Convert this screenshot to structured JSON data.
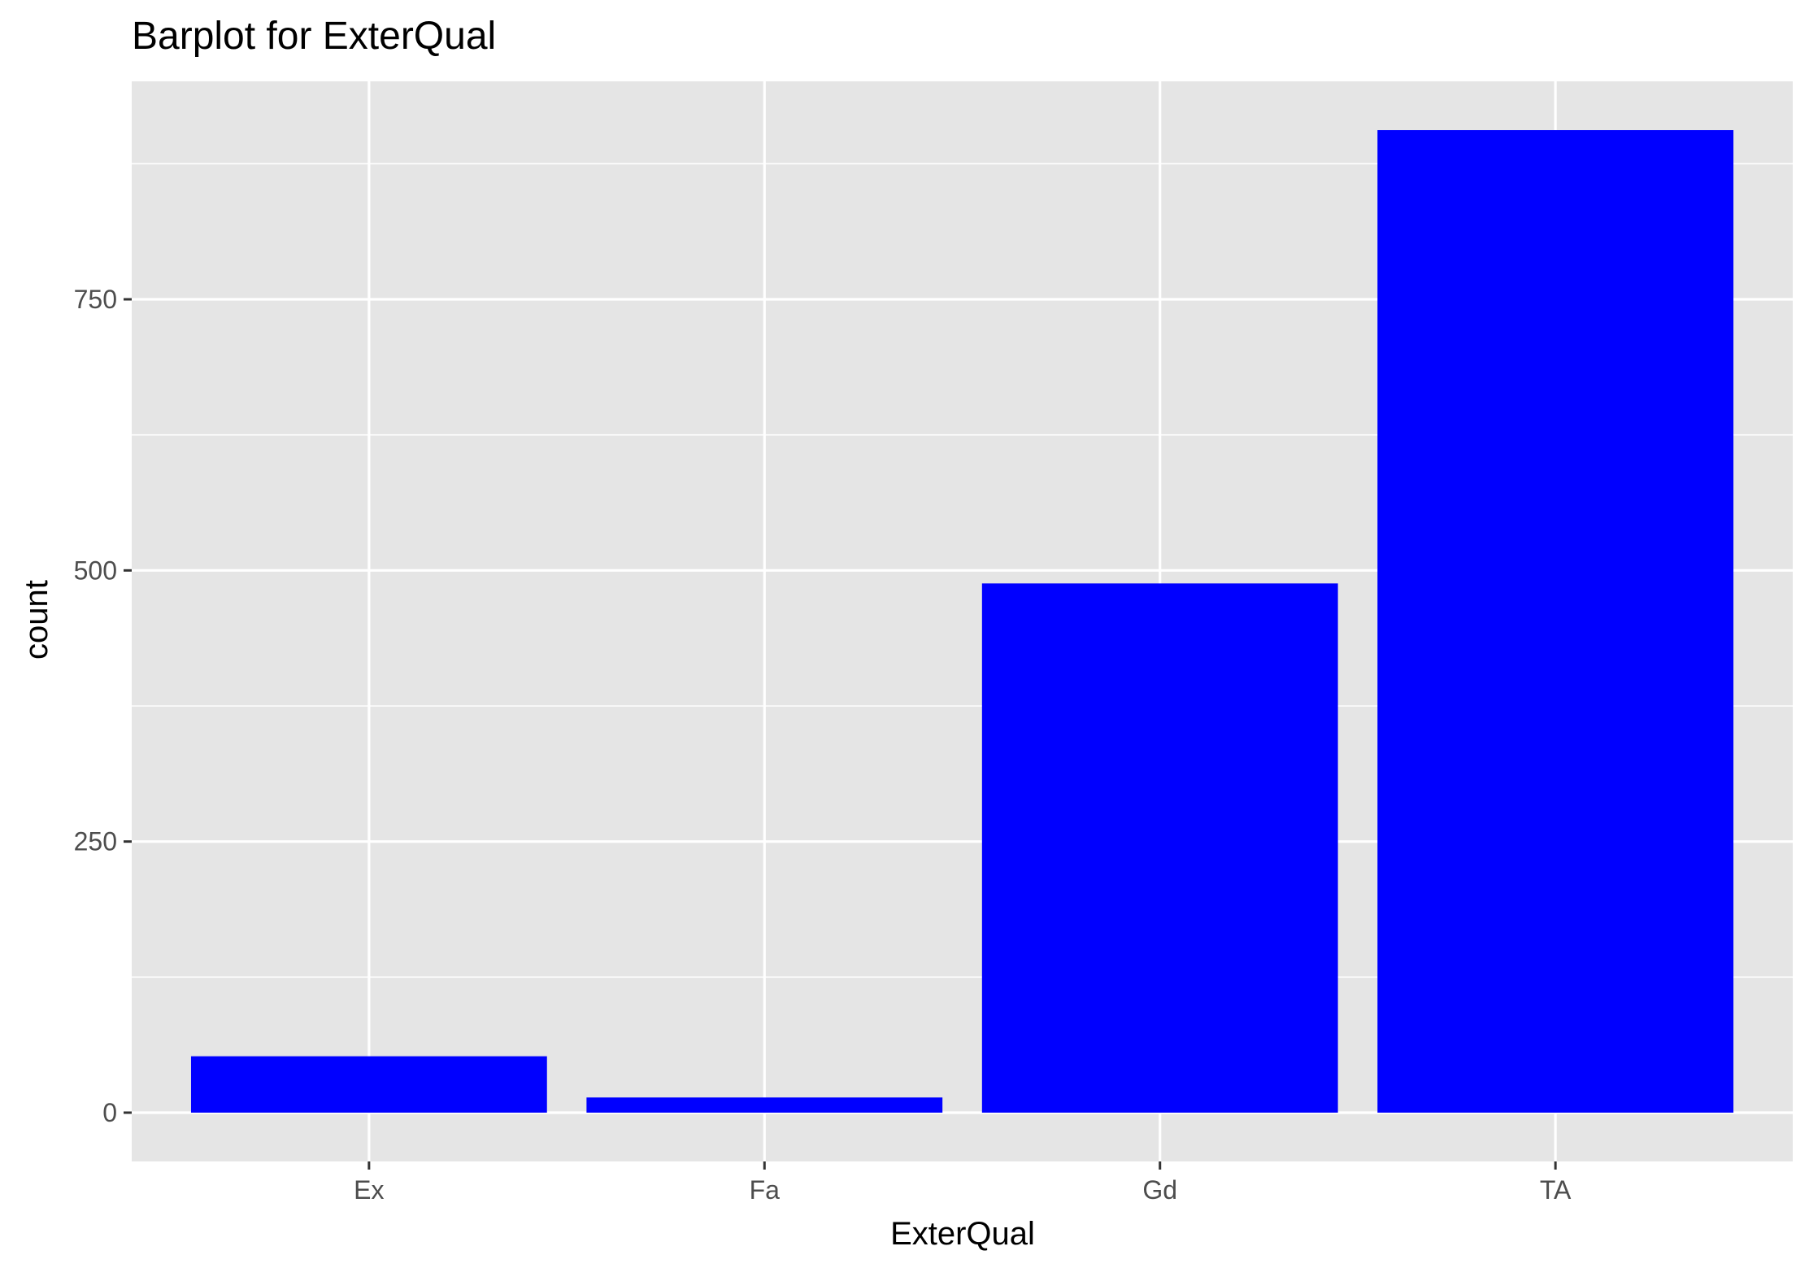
{
  "chart_data": {
    "type": "bar",
    "title": "Barplot for ExterQual",
    "xlabel": "ExterQual",
    "ylabel": "count",
    "categories": [
      "Ex",
      "Fa",
      "Gd",
      "TA"
    ],
    "values": [
      52,
      14,
      488,
      906
    ],
    "ylim": [
      -45,
      951
    ],
    "yticks": [
      0,
      250,
      500,
      750
    ],
    "y_minor_ticks": [
      125,
      375,
      625,
      875
    ],
    "grid": true,
    "legend": "none",
    "colors": {
      "bar_fill": "#0000FF",
      "panel_background": "#E5E5E5",
      "grid_line": "#FFFFFF",
      "tick_label": "#4D4D4D",
      "tick_mark": "#333333"
    }
  }
}
